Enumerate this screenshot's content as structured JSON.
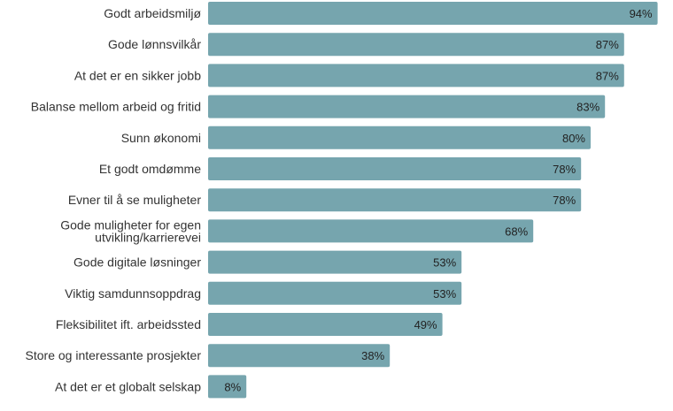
{
  "chart_data": {
    "type": "bar",
    "orientation": "horizontal",
    "title": "",
    "xlabel": "",
    "ylabel": "",
    "xlim": [
      0,
      100
    ],
    "grid": false,
    "legend": "none",
    "bar_color": "#76a5ae",
    "categories": [
      [
        "Godt arbeidsmiljø"
      ],
      [
        "Gode lønnsvilkår"
      ],
      [
        "At det er en sikker jobb"
      ],
      [
        "Balanse mellom arbeid og fritid"
      ],
      [
        "Sunn økonomi"
      ],
      [
        "Et godt omdømme"
      ],
      [
        "Evner til å se muligheter"
      ],
      [
        "Gode muligheter for egen",
        "utvikling/karrierevei"
      ],
      [
        "Gode digitale løsninger"
      ],
      [
        "Viktig samdunnsoppdrag"
      ],
      [
        "Fleksibilitet ift. arbeidssted"
      ],
      [
        "Store og interessante prosjekter"
      ],
      [
        "At det er et globalt selskap"
      ]
    ],
    "values": [
      94,
      87,
      87,
      83,
      80,
      78,
      78,
      68,
      53,
      53,
      49,
      38,
      8
    ],
    "value_labels": [
      "94%",
      "87%",
      "87%",
      "83%",
      "80%",
      "78%",
      "78%",
      "68%",
      "53%",
      "53%",
      "49%",
      "38%",
      "8%"
    ]
  }
}
